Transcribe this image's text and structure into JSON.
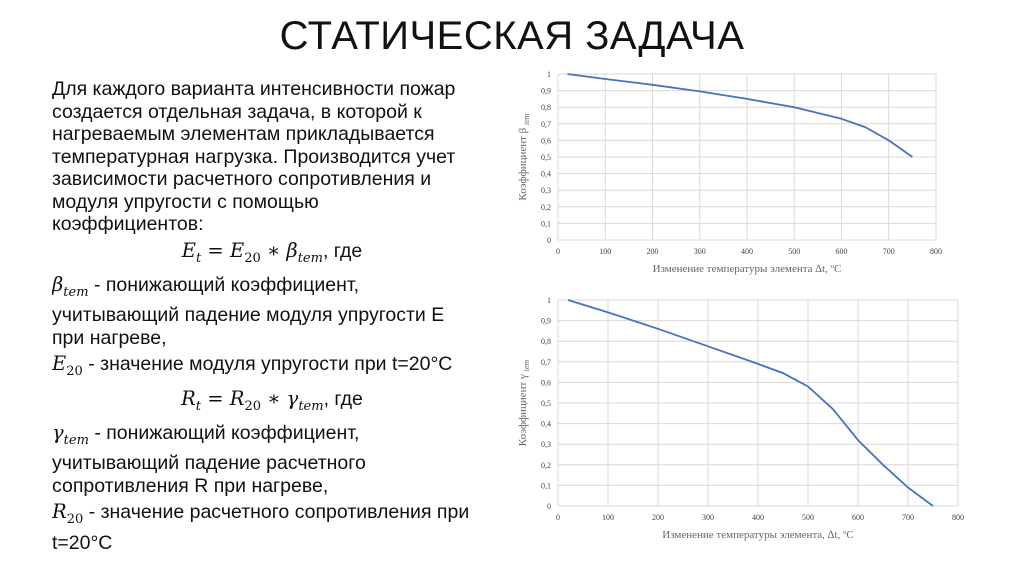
{
  "slide": {
    "title": "СТАТИЧЕСКАЯ ЗАДАЧА"
  },
  "text": {
    "intro_lines": [
      "Для каждого варианта интенсивности пожар",
      "создается отдельная задача, в которой к",
      "нагреваемым элементам прикладывается",
      "температурная нагрузка. Производится учет",
      "зависимости расчетного сопротивления и",
      "модуля упругости с помощью",
      "коэффициентов:"
    ],
    "formula1": {
      "lhs": "E",
      "lhs_sub": "t",
      "eq": " = ",
      "rhs1": "E",
      "rhs1_sub": "20",
      "op": " ∗ ",
      "rhs2": "β",
      "rhs2_sub": "tem",
      "suffix": ", где"
    },
    "beta_def": {
      "symbol": "β",
      "sub": "tem",
      "lines": [
        " - понижающий коэффициент,",
        "учитывающий падение модуля упругости Е",
        "при нагреве,"
      ]
    },
    "e20_def": {
      "symbol": "E",
      "sub": "20",
      "text": " - значение модуля упругости при t=20°С"
    },
    "formula2": {
      "lhs": "R",
      "lhs_sub": "t",
      "eq": " = ",
      "rhs1": "R",
      "rhs1_sub": "20",
      "op": " ∗ ",
      "rhs2": "γ",
      "rhs2_sub": "tem",
      "suffix": ", где"
    },
    "gamma_def": {
      "symbol": "γ",
      "sub": "tem",
      "lines": [
        " - понижающий коэффициент,",
        "учитывающий падение расчетного",
        "сопротивления R при нагреве,"
      ]
    },
    "r20_def": {
      "symbol": "R",
      "sub": "20",
      "lines": [
        " - значение расчетного сопротивления при",
        "t=20°С"
      ]
    }
  },
  "chart_data": [
    {
      "type": "line",
      "ylabel": "Коэффициент β",
      "ylabel_sub": "tem",
      "xlabel": "Изменение температуры элемента ∆t, ºC",
      "xlim": [
        0,
        800
      ],
      "ylim": [
        0,
        1
      ],
      "xticks": [
        "0",
        "100",
        "200",
        "300",
        "400",
        "500",
        "600",
        "700",
        "800"
      ],
      "yticks": [
        "0",
        "0,1",
        "0,2",
        "0,3",
        "0,4",
        "0,5",
        "0,6",
        "0,7",
        "0,8",
        "0,9",
        "1"
      ],
      "grid": true,
      "line_color": "#4472c4",
      "x": [
        20,
        100,
        200,
        300,
        400,
        500,
        600,
        650,
        700,
        750
      ],
      "y": [
        1.0,
        0.97,
        0.935,
        0.895,
        0.85,
        0.8,
        0.73,
        0.68,
        0.6,
        0.5
      ]
    },
    {
      "type": "line",
      "ylabel": "Коэффициент γ",
      "ylabel_sub": "tem",
      "xlabel": "Изменение температуры элемента, ∆t, ºC",
      "xlim": [
        0,
        800
      ],
      "ylim": [
        0,
        1
      ],
      "xticks": [
        "0",
        "100",
        "200",
        "300",
        "400",
        "500",
        "600",
        "700",
        "800"
      ],
      "yticks": [
        "0",
        "0,1",
        "0,2",
        "0,3",
        "0,4",
        "0,5",
        "0,6",
        "0,7",
        "0,8",
        "0,9",
        "1"
      ],
      "grid": true,
      "line_color": "#4472c4",
      "x": [
        20,
        100,
        200,
        300,
        400,
        450,
        500,
        550,
        600,
        650,
        700,
        750
      ],
      "y": [
        1.0,
        0.94,
        0.86,
        0.775,
        0.69,
        0.645,
        0.58,
        0.47,
        0.32,
        0.2,
        0.09,
        0.0
      ]
    }
  ]
}
